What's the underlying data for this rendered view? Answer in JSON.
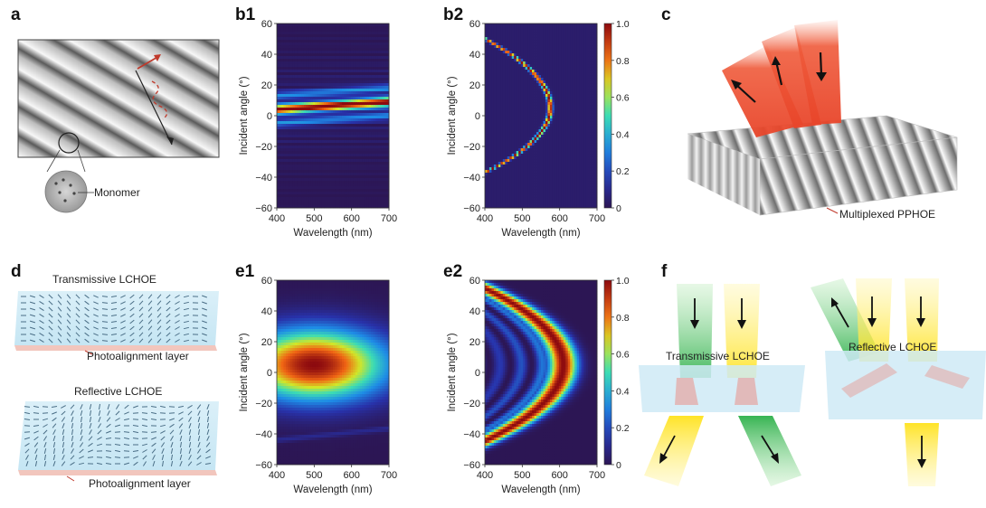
{
  "panels": {
    "a": "a",
    "b1": "b1",
    "b2": "b2",
    "c": "c",
    "d": "d",
    "e1": "e1",
    "e2": "e2",
    "f": "f"
  },
  "annotations": {
    "monomer": "Monomer",
    "multiplexed": "Multiplexed PPHOE",
    "transmissive_d": "Transmissive LCHOE",
    "photo_top": "Photoalignment layer",
    "reflective_d": "Reflective LCHOE",
    "photo_bottom": "Photoalignment layer",
    "transmissive_f": "Transmissive LCHOE",
    "reflective_f": "Reflective LCHOE"
  },
  "colorbar_ticks": [
    "1.0",
    "0.8",
    "0.6",
    "0.4",
    "0.2",
    "0"
  ],
  "chart_data": [
    {
      "id": "b1",
      "type": "heatmap",
      "xlabel": "Wavelength (nm)",
      "ylabel": "Incident angle (°)",
      "xlim": [
        400,
        700
      ],
      "ylim": [
        -60,
        60
      ],
      "xticks": [
        "400",
        "500",
        "600",
        "700"
      ],
      "yticks": [
        "60",
        "40",
        "20",
        "0",
        "−20",
        "−40",
        "−60"
      ],
      "feature": {
        "kind": "near-flat band",
        "angle_at_400": 4,
        "angle_at_700": 9,
        "width_deg": 3
      }
    },
    {
      "id": "b2",
      "type": "heatmap",
      "xlabel": "Wavelength (nm)",
      "ylabel": "Incident angle (°)",
      "xlim": [
        400,
        700
      ],
      "ylim": [
        -60,
        60
      ],
      "xticks": [
        "400",
        "500",
        "600",
        "700"
      ],
      "yticks": [
        "60",
        "40",
        "20",
        "0",
        "−20",
        "−40",
        "−60"
      ],
      "colorbar": {
        "min": 0,
        "max": 1,
        "ticks": [
          0,
          0.2,
          0.4,
          0.6,
          0.8,
          1.0
        ]
      },
      "feature": {
        "kind": "parabolic arc",
        "vertex_wavelength": 575,
        "vertex_angle": 5,
        "ends": [
          [
            400,
            50
          ],
          [
            400,
            -37
          ]
        ]
      }
    },
    {
      "id": "e1",
      "type": "heatmap",
      "xlabel": "Wavelength (nm)",
      "ylabel": "Incident angle (°)",
      "xlim": [
        400,
        700
      ],
      "ylim": [
        -60,
        60
      ],
      "xticks": [
        "400",
        "500",
        "600",
        "700"
      ],
      "yticks": [
        "60",
        "40",
        "20",
        "0",
        "−20",
        "−40",
        "−60"
      ],
      "feature": {
        "kind": "broad ellipse",
        "center_wavelength": 500,
        "center_angle": 5,
        "angular_halfwidth": 25
      }
    },
    {
      "id": "e2",
      "type": "heatmap",
      "xlabel": "Wavelength (nm)",
      "ylabel": "Incident angle (°)",
      "xlim": [
        400,
        700
      ],
      "ylim": [
        -60,
        60
      ],
      "xticks": [
        "400",
        "500",
        "600",
        "700"
      ],
      "yticks": [
        "60",
        "40",
        "20",
        "0",
        "−20",
        "−40",
        "−60"
      ],
      "colorbar": {
        "min": 0,
        "max": 1,
        "ticks": [
          0,
          0.2,
          0.4,
          0.6,
          0.8,
          1.0
        ]
      },
      "feature": {
        "kind": "broad parabolic band with side fringes",
        "vertex_wavelength": 610,
        "vertex_angle": 5
      }
    }
  ]
}
